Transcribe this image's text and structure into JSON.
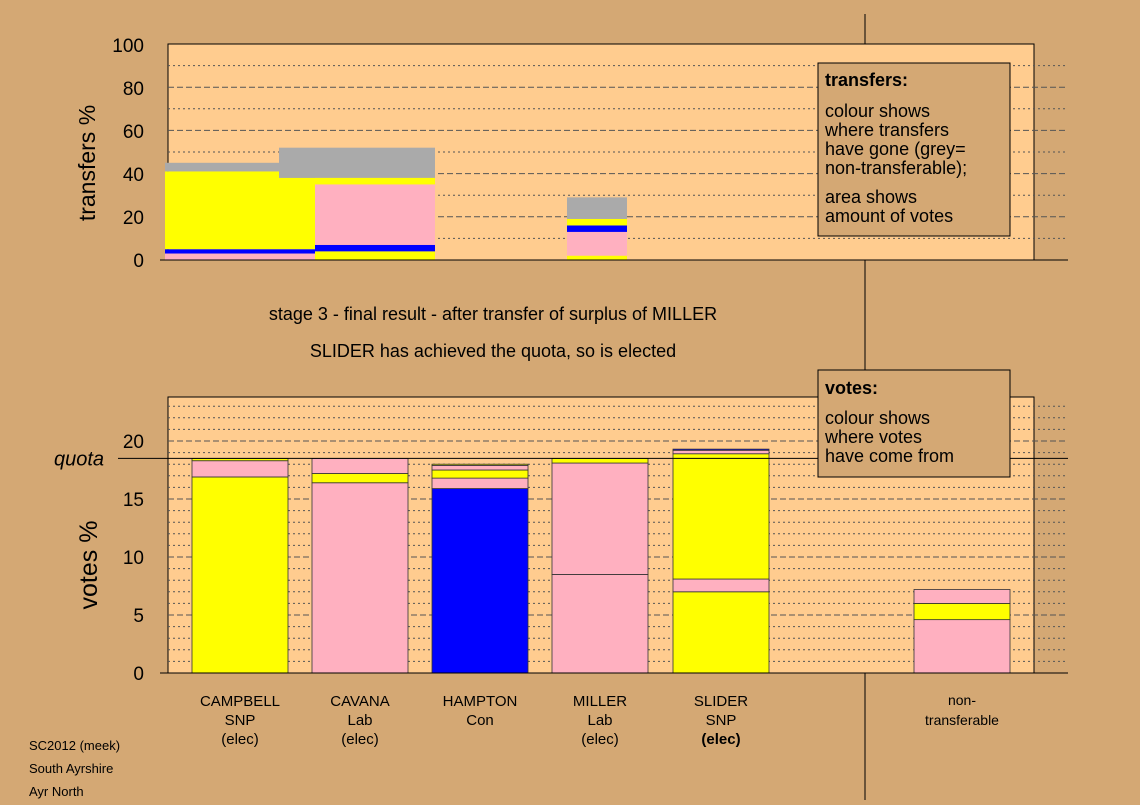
{
  "colors": {
    "background": "#D4A874",
    "panel": "#FFCC8F",
    "snp": "#FFFF00",
    "lab": "#FFB0C0",
    "con": "#0000FF",
    "nontransferable": "#AAAAAA",
    "text": "#000000"
  },
  "transfers_panel": {
    "ylabel": "transfers %",
    "ticks": [
      "0",
      "20",
      "40",
      "60",
      "80",
      "100"
    ],
    "legend": {
      "title": "transfers:",
      "lines1": [
        "colour shows",
        "where transfers",
        "have gone (grey=",
        "non-transferable);"
      ],
      "lines2": [
        "area shows",
        "amount of votes"
      ]
    }
  },
  "captions": {
    "stage": "stage 3 - final result - after transfer of surplus of MILLER",
    "elected": "SLIDER has achieved the quota, so is elected"
  },
  "votes_panel": {
    "ylabel": "votes %",
    "quota_label": "quota",
    "ticks": [
      "0",
      "5",
      "10",
      "15",
      "20"
    ],
    "legend": {
      "title": "votes:",
      "lines": [
        "colour shows",
        "where votes",
        "have come from"
      ]
    }
  },
  "candidates": [
    {
      "name": "CAMPBELL",
      "party": "SNP",
      "status": "(elec)",
      "bold": false
    },
    {
      "name": "CAVANA",
      "party": "Lab",
      "status": "(elec)",
      "bold": false
    },
    {
      "name": "HAMPTON",
      "party": "Con",
      "status": "",
      "bold": false
    },
    {
      "name": "MILLER",
      "party": "Lab",
      "status": "(elec)",
      "bold": false
    },
    {
      "name": "SLIDER",
      "party": "SNP",
      "status": "(elec)",
      "bold": true
    }
  ],
  "nontransferable_label": [
    "non-",
    "transferable"
  ],
  "footer": [
    "SC2012 (meek)",
    "South Ayrshire",
    "Ayr North"
  ],
  "chart_data": [
    {
      "type": "bar",
      "title": "transfers",
      "ylabel": "transfers %",
      "ylim": [
        0,
        100
      ],
      "note": "",
      "bars": [
        {
          "x_range": [
            0,
            1.25
          ],
          "segments": [
            {
              "color": "lab",
              "from": 0,
              "to": 3
            },
            {
              "color": "con",
              "from": 3,
              "to": 5
            },
            {
              "color": "snp",
              "from": 5,
              "to": 41
            },
            {
              "color": "nontransferable",
              "from": 41,
              "to": 45
            }
          ]
        },
        {
          "x_range": [
            0.95,
            2.25
          ],
          "segments": [
            {
              "color": "nontransferable",
              "from": 38,
              "to": 52
            }
          ]
        },
        {
          "x_range": [
            1.25,
            2.25
          ],
          "segments": [
            {
              "color": "snp",
              "from": 0,
              "to": 4
            },
            {
              "color": "con",
              "from": 4,
              "to": 7
            },
            {
              "color": "lab",
              "from": 7,
              "to": 35
            },
            {
              "color": "snp",
              "from": 35,
              "to": 38
            }
          ]
        },
        {
          "x_range": [
            3.35,
            3.85
          ],
          "segments": [
            {
              "color": "snp",
              "from": 0,
              "to": 2
            },
            {
              "color": "lab",
              "from": 2,
              "to": 13
            },
            {
              "color": "con",
              "from": 13,
              "to": 16
            },
            {
              "color": "snp",
              "from": 16,
              "to": 19
            },
            {
              "color": "nontransferable",
              "from": 19,
              "to": 29
            }
          ]
        }
      ]
    },
    {
      "type": "bar",
      "title": "votes",
      "ylabel": "votes %",
      "ylim": [
        0,
        24
      ],
      "quota": 18.5,
      "categories": [
        "CAMPBELL",
        "CAVANA",
        "HAMPTON",
        "MILLER",
        "SLIDER",
        "non-transferable"
      ],
      "stacks": [
        [
          {
            "color": "snp",
            "value": 16.9
          },
          {
            "color": "lab",
            "value": 1.4
          },
          {
            "color": "snp",
            "value": 0.2
          }
        ],
        [
          {
            "color": "lab",
            "value": 16.4
          },
          {
            "color": "snp",
            "value": 0.8
          },
          {
            "color": "lab",
            "value": 1.3
          }
        ],
        [
          {
            "color": "con",
            "value": 15.9
          },
          {
            "color": "lab",
            "value": 0.9
          },
          {
            "color": "snp",
            "value": 0.7
          },
          {
            "color": "lab",
            "value": 0.4
          },
          {
            "color": "snp",
            "value": 0.1
          }
        ],
        [
          {
            "color": "lab",
            "value": 8.5
          },
          {
            "color": "lab",
            "value": 9.6
          },
          {
            "color": "snp",
            "value": 0.4
          }
        ],
        [
          {
            "color": "snp",
            "value": 7.0
          },
          {
            "color": "lab",
            "value": 1.1
          },
          {
            "color": "snp",
            "value": 10.8
          },
          {
            "color": "lab",
            "value": 0.3
          },
          {
            "color": "con",
            "value": 0.1
          }
        ],
        [
          {
            "color": "lab",
            "value": 4.6
          },
          {
            "color": "snp",
            "value": 1.4
          },
          {
            "color": "lab",
            "value": 1.2
          }
        ]
      ]
    }
  ]
}
